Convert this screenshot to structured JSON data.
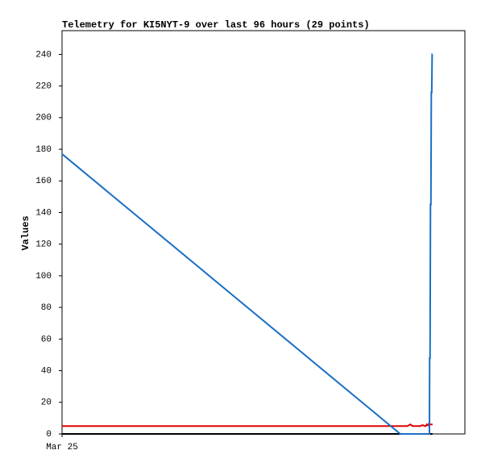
{
  "chart_data": {
    "type": "line",
    "title": "Telemetry for KI5NYT-9 over last 96 hours (29 points)",
    "y_label": "Values",
    "x": [
      0,
      80.6,
      81.5,
      82.3,
      83.0,
      83.5,
      84.0,
      84.5,
      85.0,
      85.4,
      85.8,
      86.1,
      86.4,
      86.7,
      86.9,
      87.1,
      87.2,
      87.3,
      87.4,
      87.5,
      87.55,
      87.6,
      87.7,
      87.8,
      87.9,
      88.0,
      88.1,
      88.2,
      88.3
    ],
    "xlim": [
      0,
      96
    ],
    "xticks": [
      {
        "value": 0,
        "label": "Mar 25"
      }
    ],
    "ylim": [
      0,
      255
    ],
    "yticks": [
      0,
      20,
      40,
      60,
      80,
      100,
      120,
      140,
      160,
      180,
      200,
      220,
      240
    ],
    "grid": false,
    "series": [
      {
        "color": "#000000",
        "values": [
          0,
          0,
          0,
          0,
          0,
          0,
          0,
          0,
          0,
          0,
          0,
          0,
          0,
          0,
          0,
          0,
          0,
          0,
          0,
          0,
          0,
          0,
          0,
          0,
          0,
          0,
          0,
          0,
          0
        ]
      },
      {
        "color": "#e00000",
        "values": [
          5,
          5,
          5,
          5,
          6,
          5,
          5,
          5,
          5,
          5,
          5.5,
          5.5,
          5,
          5,
          6,
          5.5,
          5.5,
          6,
          5.5,
          6,
          6,
          6,
          6,
          6,
          6,
          6,
          6,
          6,
          6
        ]
      },
      {
        "color": "#1a6fc4",
        "values": [
          177,
          0,
          0,
          0,
          0,
          0,
          0,
          0,
          0,
          0,
          0,
          0,
          0,
          0,
          0,
          0,
          0,
          0,
          0,
          0,
          0,
          48,
          48,
          145,
          145,
          216,
          216,
          240,
          240
        ]
      }
    ]
  }
}
